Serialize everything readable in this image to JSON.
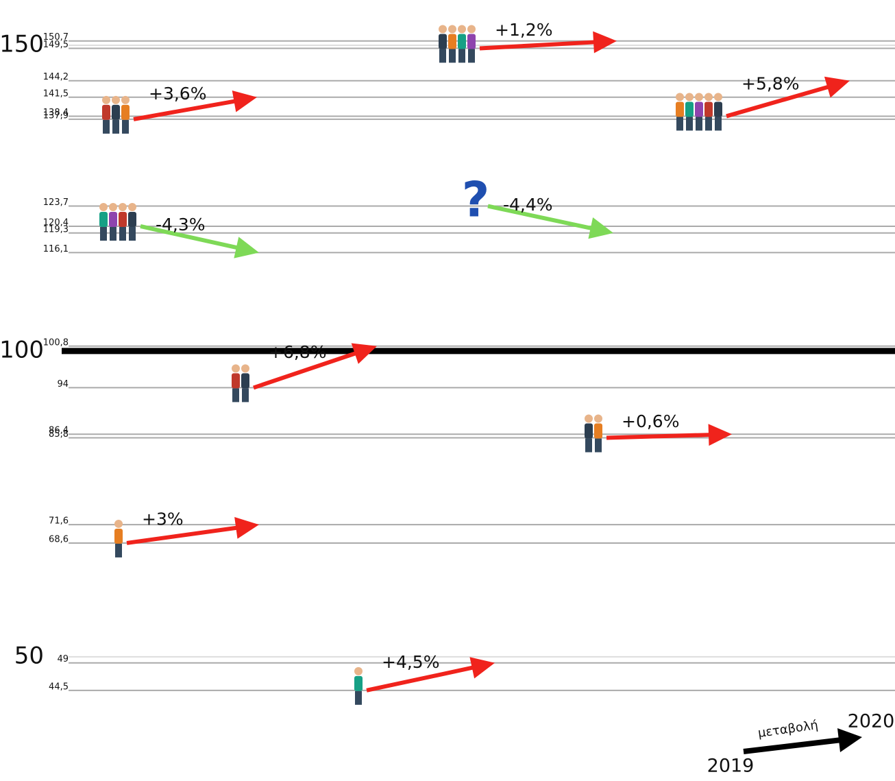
{
  "chart_data": {
    "type": "slope",
    "ylim": [
      40,
      155
    ],
    "major_ticks": [
      150,
      100,
      50
    ],
    "baseline": 100,
    "yticks": [
      {
        "value": 150.7,
        "label": "150,7"
      },
      {
        "value": 149.5,
        "label": "149,5"
      },
      {
        "value": 144.2,
        "label": "144,2"
      },
      {
        "value": 141.5,
        "label": "141,5"
      },
      {
        "value": 138.4,
        "label": "138,4"
      },
      {
        "value": 137.9,
        "label": "137,9"
      },
      {
        "value": 123.7,
        "label": "123,7"
      },
      {
        "value": 120.4,
        "label": "120,4"
      },
      {
        "value": 119.3,
        "label": "119,3"
      },
      {
        "value": 116.1,
        "label": "116,1"
      },
      {
        "value": 100.8,
        "label": "100,8"
      },
      94,
      {
        "value": 86.4,
        "label": "86,4"
      },
      {
        "value": 85.8,
        "label": "85,8"
      },
      {
        "value": 71.6,
        "label": "71,6"
      },
      {
        "value": 68.6,
        "label": "68,6"
      },
      49,
      {
        "value": 44.5,
        "label": "44,5"
      }
    ],
    "arrows": [
      {
        "label": "+3,6%",
        "from": 137.9,
        "to": 141.5,
        "color": "#f0231c"
      },
      {
        "label": "+1,2%",
        "from": 149.5,
        "to": 150.7,
        "color": "#f0231c"
      },
      {
        "label": "+5,8%",
        "from": 138.4,
        "to": 144.2,
        "color": "#f0231c"
      },
      {
        "label": "-4,3%",
        "from": 120.4,
        "to": 116.1,
        "color": "#7ed957"
      },
      {
        "label": "-4,4%",
        "from": 123.7,
        "to": 119.3,
        "color": "#7ed957",
        "marker": "?"
      },
      {
        "label": "+6,8%",
        "from": 94,
        "to": 100.8,
        "color": "#f0231c"
      },
      {
        "label": "+0,6%",
        "from": 85.8,
        "to": 86.4,
        "color": "#f0231c"
      },
      {
        "label": "+3%",
        "from": 68.6,
        "to": 71.6,
        "color": "#f0231c"
      },
      {
        "label": "+4,5%",
        "from": 44.5,
        "to": 49,
        "color": "#f0231c"
      }
    ],
    "legend": {
      "label": "μεταβολή",
      "start": "2019",
      "end": "2020"
    }
  }
}
